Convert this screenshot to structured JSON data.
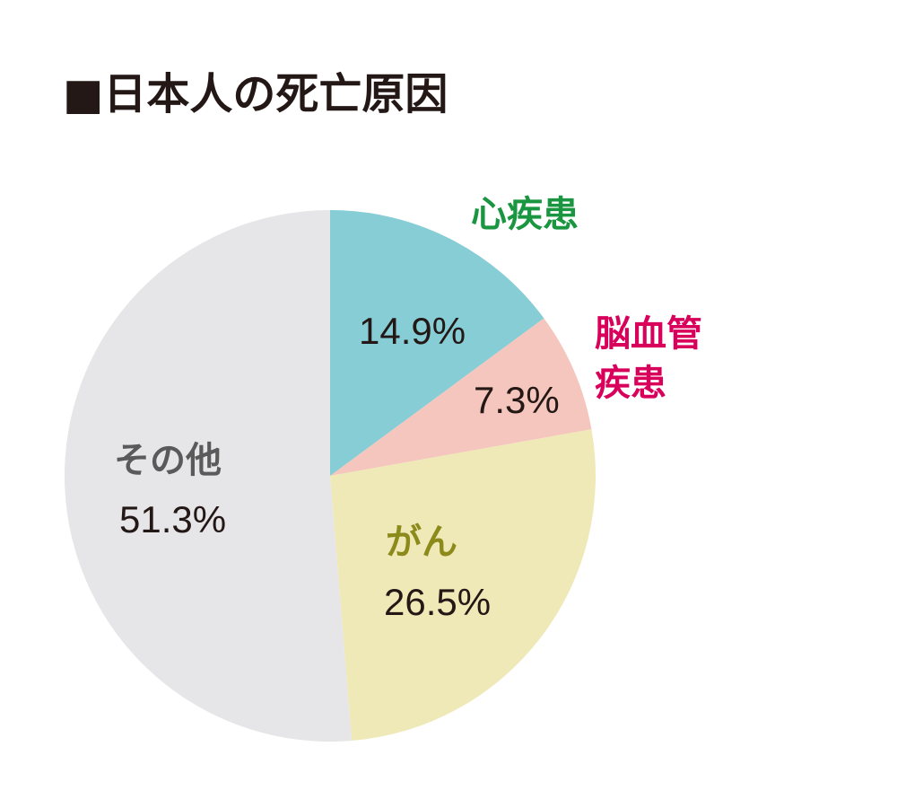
{
  "chart_data": {
    "type": "pie",
    "title": "■日本人の死亡原因",
    "slices": [
      {
        "label": "心疾患",
        "value": 14.9,
        "value_label": "14.9%",
        "color": "#86cdd5",
        "label_color": "#1a9641"
      },
      {
        "label": "脳血管\n疾患",
        "value": 7.3,
        "value_label": "7.3%",
        "color": "#f5c6bd",
        "label_color": "#d8005b"
      },
      {
        "label": "がん",
        "value": 26.5,
        "value_label": "26.5%",
        "color": "#efe9b8",
        "label_color": "#8c8a1a"
      },
      {
        "label": "その他",
        "value": 51.3,
        "value_label": "51.3%",
        "color": "#e6e6e8",
        "label_color": "#5a5a5a"
      }
    ]
  }
}
